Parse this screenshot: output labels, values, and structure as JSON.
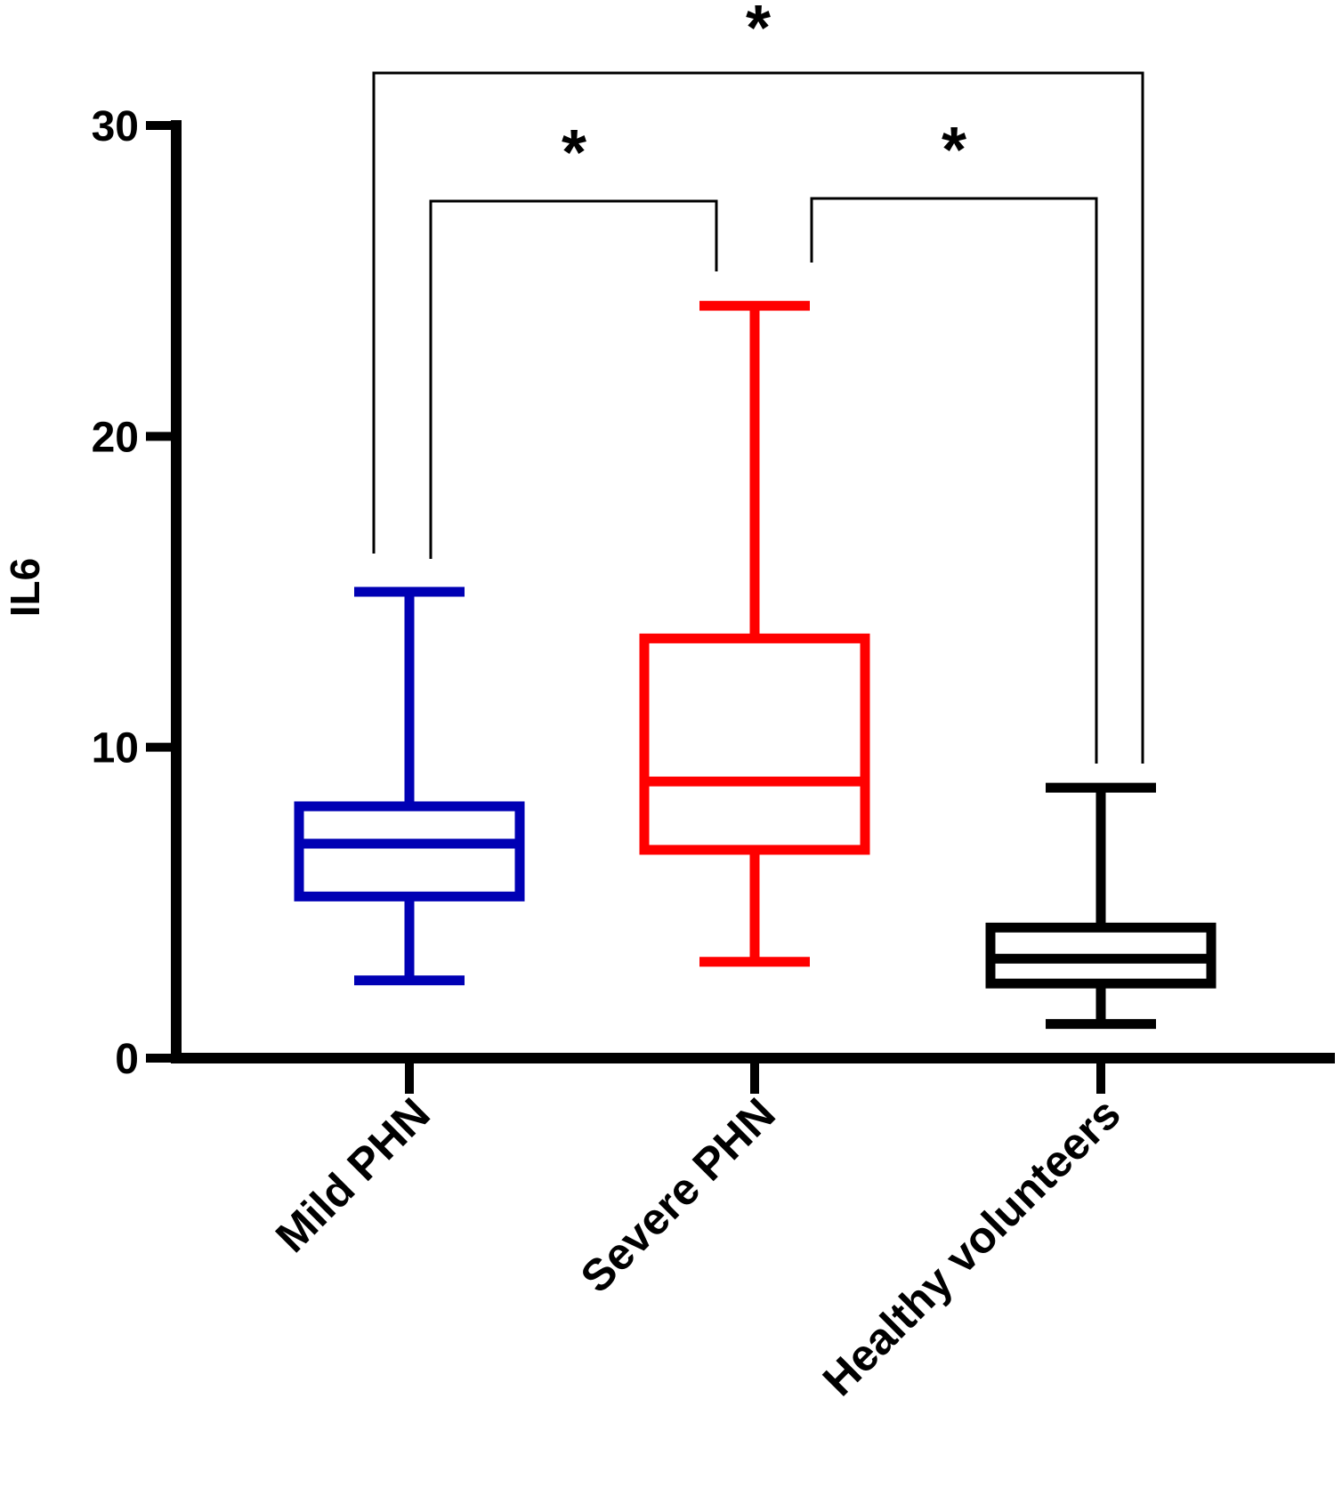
{
  "chart_data": {
    "type": "boxplot",
    "title": "",
    "xlabel": "",
    "ylabel": "IL6",
    "ylim": [
      0,
      30
    ],
    "yticks": [
      0,
      10,
      20,
      30
    ],
    "yticks_labels": [
      "0",
      "10",
      "20",
      "30"
    ],
    "grid": false,
    "categories": [
      "Mild PHN",
      "Severe PHN",
      "Healthy volunteers"
    ],
    "series": [
      {
        "category": "Mild PHN",
        "color": "#0000b4",
        "min": 2.5,
        "q1": 5.2,
        "median": 6.9,
        "q3": 8.1,
        "max": 15.0
      },
      {
        "category": "Severe PHN",
        "color": "#ff0000",
        "min": 3.1,
        "q1": 6.7,
        "median": 8.9,
        "q3": 13.5,
        "max": 24.2
      },
      {
        "category": "Healthy volunteers",
        "color": "#000000",
        "min": 1.1,
        "q1": 2.4,
        "median": 3.2,
        "q3": 4.2,
        "max": 8.7
      }
    ],
    "significance": [
      {
        "from": "Mild PHN",
        "to": "Severe PHN",
        "label": "*"
      },
      {
        "from": "Severe PHN",
        "to": "Healthy volunteers",
        "label": "*"
      },
      {
        "from": "Mild PHN",
        "to": "Healthy volunteers",
        "label": "*"
      }
    ]
  }
}
